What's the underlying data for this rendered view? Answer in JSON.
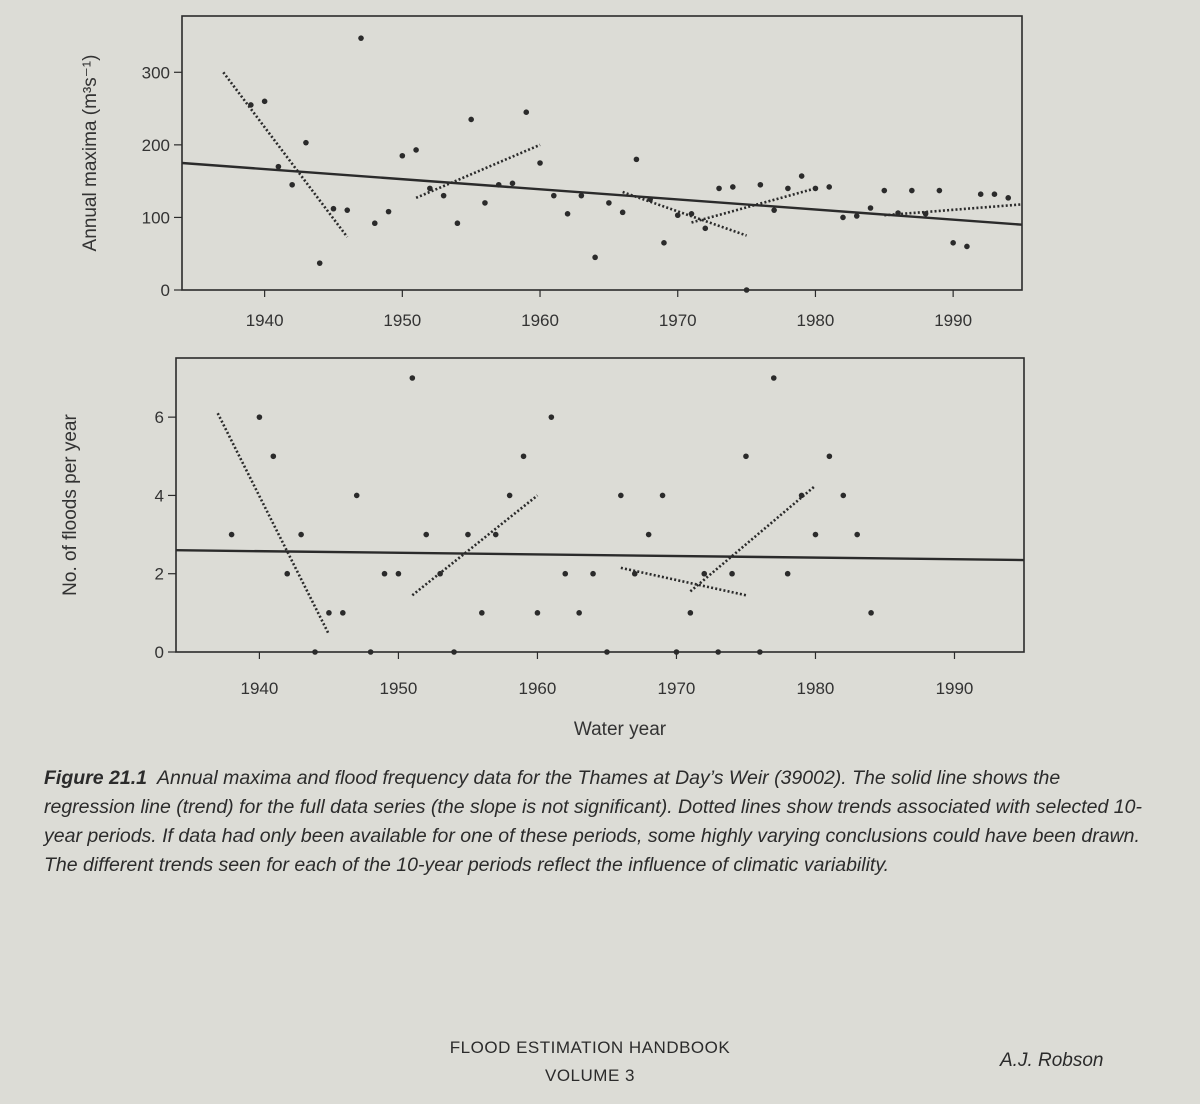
{
  "chart_data": [
    {
      "type": "scatter",
      "ylabel": "Annual maxima (m³s⁻¹)",
      "xlabel": "",
      "xlim": [
        1934,
        1995
      ],
      "ylim": [
        0,
        350
      ],
      "xticks": [
        1940,
        1950,
        1960,
        1970,
        1980,
        1990
      ],
      "yticks": [
        0,
        100,
        200,
        300
      ],
      "points": [
        [
          1939,
          255
        ],
        [
          1940,
          260
        ],
        [
          1941,
          170
        ],
        [
          1942,
          145
        ],
        [
          1943,
          203
        ],
        [
          1944,
          37
        ],
        [
          1945,
          112
        ],
        [
          1946,
          110
        ],
        [
          1947,
          347
        ],
        [
          1948,
          92
        ],
        [
          1949,
          108
        ],
        [
          1950,
          185
        ],
        [
          1951,
          193
        ],
        [
          1952,
          140
        ],
        [
          1953,
          130
        ],
        [
          1954,
          92
        ],
        [
          1955,
          235
        ],
        [
          1956,
          120
        ],
        [
          1957,
          145
        ],
        [
          1958,
          147
        ],
        [
          1959,
          245
        ],
        [
          1960,
          175
        ],
        [
          1961,
          130
        ],
        [
          1962,
          105
        ],
        [
          1963,
          130
        ],
        [
          1964,
          45
        ],
        [
          1965,
          120
        ],
        [
          1966,
          107
        ],
        [
          1967,
          180
        ],
        [
          1968,
          125
        ],
        [
          1969,
          65
        ],
        [
          1970,
          103
        ],
        [
          1971,
          105
        ],
        [
          1972,
          85
        ],
        [
          1973,
          140
        ],
        [
          1974,
          142
        ],
        [
          1975,
          0
        ],
        [
          1976,
          145
        ],
        [
          1977,
          110
        ],
        [
          1978,
          140
        ],
        [
          1979,
          157
        ],
        [
          1980,
          140
        ],
        [
          1981,
          142
        ],
        [
          1982,
          100
        ],
        [
          1983,
          102
        ],
        [
          1984,
          113
        ],
        [
          1985,
          137
        ],
        [
          1986,
          106
        ],
        [
          1987,
          137
        ],
        [
          1988,
          105
        ],
        [
          1989,
          137
        ],
        [
          1990,
          65
        ],
        [
          1991,
          60
        ],
        [
          1992,
          132
        ],
        [
          1993,
          132
        ],
        [
          1994,
          127
        ]
      ],
      "full_trend": [
        [
          1934,
          175
        ],
        [
          1995,
          90
        ]
      ],
      "period_trends": [
        [
          [
            1937,
            300
          ],
          [
            1946,
            73
          ]
        ],
        [
          [
            1951,
            127
          ],
          [
            1960,
            200
          ]
        ],
        [
          [
            1966,
            135
          ],
          [
            1975,
            75
          ]
        ],
        [
          [
            1971,
            93
          ],
          [
            1980,
            140
          ]
        ],
        [
          [
            1985,
            103
          ],
          [
            1995,
            118
          ]
        ]
      ],
      "grid": false
    },
    {
      "type": "scatter",
      "ylabel": "No. of floods per year",
      "xlabel": "Water year",
      "xlim": [
        1934,
        1995
      ],
      "ylim": [
        0,
        7
      ],
      "xticks": [
        1940,
        1950,
        1960,
        1970,
        1980,
        1990
      ],
      "yticks": [
        0,
        2,
        4,
        6
      ],
      "points": [
        [
          1938,
          3
        ],
        [
          1940,
          6
        ],
        [
          1941,
          5
        ],
        [
          1942,
          2
        ],
        [
          1943,
          3
        ],
        [
          1944,
          0
        ],
        [
          1945,
          1
        ],
        [
          1946,
          1
        ],
        [
          1947,
          4
        ],
        [
          1948,
          0
        ],
        [
          1949,
          2
        ],
        [
          1950,
          2
        ],
        [
          1951,
          7
        ],
        [
          1952,
          3
        ],
        [
          1953,
          2
        ],
        [
          1954,
          0
        ],
        [
          1955,
          3
        ],
        [
          1956,
          1
        ],
        [
          1957,
          3
        ],
        [
          1958,
          4
        ],
        [
          1959,
          5
        ],
        [
          1960,
          1
        ],
        [
          1961,
          6
        ],
        [
          1962,
          2
        ],
        [
          1963,
          1
        ],
        [
          1964,
          2
        ],
        [
          1965,
          0
        ],
        [
          1966,
          4
        ],
        [
          1967,
          2
        ],
        [
          1968,
          3
        ],
        [
          1969,
          4
        ],
        [
          1970,
          0
        ],
        [
          1971,
          1
        ],
        [
          1972,
          2
        ],
        [
          1973,
          0
        ],
        [
          1974,
          2
        ],
        [
          1975,
          5
        ],
        [
          1976,
          0
        ],
        [
          1977,
          7
        ],
        [
          1978,
          2
        ],
        [
          1979,
          4
        ],
        [
          1980,
          3
        ],
        [
          1981,
          5
        ],
        [
          1982,
          4
        ],
        [
          1983,
          3
        ],
        [
          1984,
          1
        ]
      ],
      "full_trend": [
        [
          1934,
          2.6
        ],
        [
          1995,
          2.35
        ]
      ],
      "period_trends": [
        [
          [
            1937,
            6.1
          ],
          [
            1945,
            0.45
          ]
        ],
        [
          [
            1951,
            1.45
          ],
          [
            1960,
            4.0
          ]
        ],
        [
          [
            1966,
            2.15
          ],
          [
            1975,
            1.45
          ]
        ],
        [
          [
            1971,
            1.55
          ],
          [
            1980,
            4.25
          ]
        ]
      ],
      "grid": false
    }
  ],
  "caption": {
    "label": "Figure 21.1",
    "text": "Annual maxima and flood frequency data for the Thames at Day’s Weir (39002). The solid line shows the regression line (trend) for the full data series (the slope is not significant). Dotted lines show trends associated with selected 10-year periods. If data had only been available for one of these periods, some highly varying conclusions could have been drawn. The different trends seen for each of the 10-year periods reflect the influence of climatic variability."
  },
  "footer": {
    "title_line1": "FLOOD ESTIMATION HANDBOOK",
    "title_line2": "VOLUME 3",
    "author": "A.J. Robson"
  },
  "colors": {
    "paper": "#dcdcd6",
    "ink": "#2b2b2b"
  }
}
